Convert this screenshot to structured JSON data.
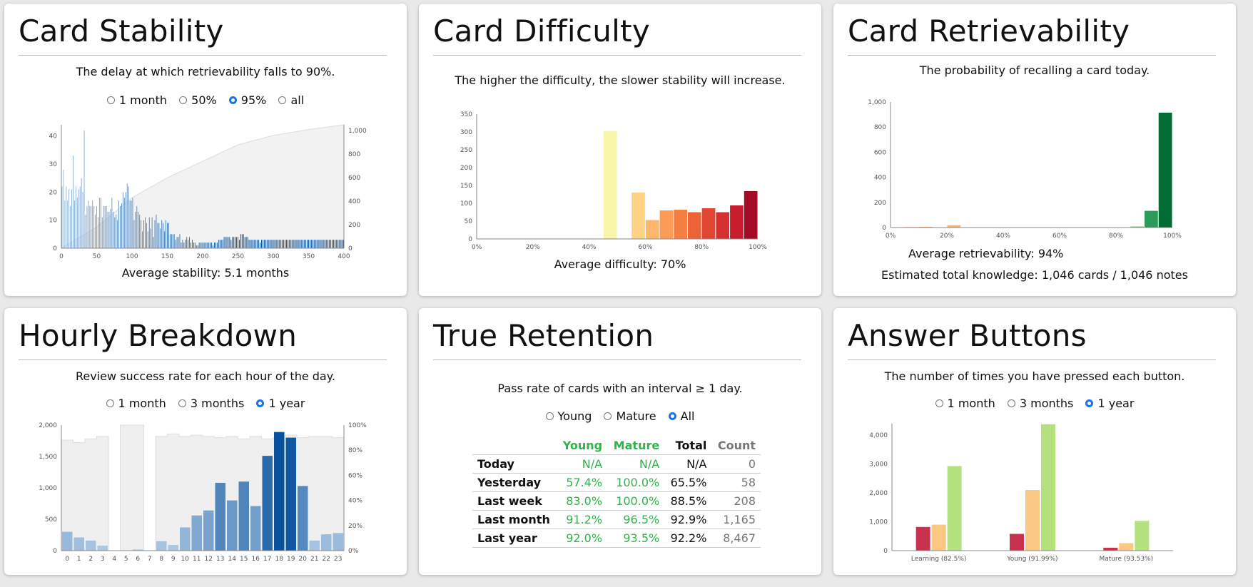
{
  "stability": {
    "title": "Card Stability",
    "subtitle": "The delay at which retrievability falls to 90%.",
    "radios": [
      {
        "label": "1 month",
        "on": false
      },
      {
        "label": "50%",
        "on": false
      },
      {
        "label": "95%",
        "on": true
      },
      {
        "label": "all",
        "on": false
      }
    ],
    "average": "Average stability: 5.1 months"
  },
  "difficulty": {
    "title": "Card Difficulty",
    "subtitle": "The higher the difficulty, the slower stability will increase.",
    "average": "Average difficulty: 70%"
  },
  "retrievability": {
    "title": "Card Retrievability",
    "subtitle": "The probability of recalling a card today.",
    "average": "Average retrievability: 94%",
    "knowledge": "Estimated total knowledge: 1,046 cards / 1,046 notes"
  },
  "hourly": {
    "title": "Hourly Breakdown",
    "subtitle": "Review success rate for each hour of the day.",
    "radios": [
      {
        "label": "1 month",
        "on": false
      },
      {
        "label": "3 months",
        "on": false
      },
      {
        "label": "1 year",
        "on": true
      }
    ]
  },
  "retention": {
    "title": "True Retention",
    "subtitle": "Pass rate of cards with an interval ≥ 1 day.",
    "radios": [
      {
        "label": "Young",
        "on": false
      },
      {
        "label": "Mature",
        "on": false
      },
      {
        "label": "All",
        "on": true
      }
    ],
    "headers": [
      "",
      "Young",
      "Mature",
      "Total",
      "Count"
    ],
    "rows": [
      [
        "Today",
        "N/A",
        "N/A",
        "N/A",
        "0"
      ],
      [
        "Yesterday",
        "57.4%",
        "100.0%",
        "65.5%",
        "58"
      ],
      [
        "Last week",
        "83.0%",
        "100.0%",
        "88.5%",
        "208"
      ],
      [
        "Last month",
        "91.2%",
        "96.5%",
        "92.9%",
        "1,165"
      ],
      [
        "Last year",
        "92.0%",
        "93.5%",
        "92.2%",
        "8,467"
      ]
    ]
  },
  "buttons": {
    "title": "Answer Buttons",
    "subtitle": "The number of times you have pressed each button.",
    "radios": [
      {
        "label": "1 month",
        "on": false
      },
      {
        "label": "3 months",
        "on": false
      },
      {
        "label": "1 year",
        "on": true
      }
    ]
  },
  "chart_data": [
    {
      "id": "stability",
      "type": "bar",
      "x_ticks": [
        "0",
        "50",
        "100",
        "150",
        "200",
        "250",
        "300",
        "350",
        "400"
      ],
      "y_ticks": [
        "0",
        "10",
        "20",
        "30",
        "40"
      ],
      "y2_ticks": [
        "0",
        "200",
        "400",
        "600",
        "800",
        "1,000"
      ],
      "xlim": [
        0,
        400
      ],
      "ylim": [
        0,
        44
      ],
      "y2lim": [
        0,
        1050
      ],
      "values": [
        22,
        28,
        17,
        22,
        17,
        21,
        15,
        21,
        33,
        17,
        22,
        18,
        21,
        22,
        25,
        20,
        42,
        12,
        15,
        17,
        15,
        15,
        17,
        15,
        12,
        15,
        11,
        18,
        18,
        11,
        15,
        15,
        15,
        13,
        13,
        14,
        18,
        13,
        11,
        12,
        10,
        17,
        15,
        16,
        20,
        18,
        20,
        23,
        22,
        17,
        17,
        18,
        10,
        13,
        15,
        13,
        12,
        10,
        6,
        10,
        11,
        9,
        6,
        11,
        7,
        11,
        4,
        10,
        12,
        9,
        9,
        7,
        10,
        9,
        6,
        10,
        9,
        9,
        5,
        5,
        5,
        5,
        3,
        4,
        4,
        5,
        2,
        3,
        2,
        3,
        4,
        3,
        4,
        2,
        3,
        2,
        2,
        1,
        1,
        2,
        2,
        2,
        2,
        2,
        2,
        2,
        2,
        2,
        2,
        1,
        2,
        2,
        2,
        3,
        3,
        3,
        3,
        4,
        4,
        4,
        4,
        4,
        3,
        4,
        4,
        4,
        4,
        4,
        3,
        5,
        5,
        5,
        4,
        4,
        4,
        3,
        3,
        3,
        3,
        3,
        3,
        3,
        3,
        2,
        3,
        3,
        3,
        3,
        3,
        3,
        3,
        3,
        3,
        3,
        3,
        3,
        3,
        3,
        3,
        3,
        3,
        3,
        3,
        3,
        3,
        3,
        3,
        3,
        3,
        3,
        3,
        3,
        3,
        3,
        3,
        3,
        3,
        3,
        3,
        3,
        3,
        3,
        3,
        3,
        3,
        3,
        3,
        3,
        3,
        3,
        3,
        3,
        3,
        3,
        3,
        3,
        3,
        3,
        3,
        3,
        3,
        3,
        3,
        3
      ],
      "cumulative": [
        [
          0,
          0
        ],
        [
          50,
          180
        ],
        [
          100,
          430
        ],
        [
          150,
          600
        ],
        [
          200,
          740
        ],
        [
          250,
          880
        ],
        [
          300,
          960
        ],
        [
          350,
          1010
        ],
        [
          400,
          1050
        ]
      ]
    },
    {
      "id": "difficulty",
      "type": "bar",
      "x_ticks": [
        "0%",
        "20%",
        "40%",
        "60%",
        "80%",
        "100%"
      ],
      "y_ticks": [
        "0",
        "50",
        "100",
        "150",
        "200",
        "250",
        "300",
        "350"
      ],
      "ylim": [
        0,
        350
      ],
      "bins": [
        [
          45,
          50,
          303,
          "#f9f5a9"
        ],
        [
          55,
          60,
          130,
          "#fdd283"
        ],
        [
          60,
          65,
          53,
          "#fdb76c"
        ],
        [
          65,
          70,
          80,
          "#fb9b55"
        ],
        [
          70,
          75,
          82,
          "#f57e43"
        ],
        [
          75,
          80,
          75,
          "#ec6337"
        ],
        [
          80,
          85,
          86,
          "#e04732"
        ],
        [
          85,
          90,
          75,
          "#d63030"
        ],
        [
          90,
          95,
          94,
          "#c81b2c"
        ],
        [
          95,
          100,
          134,
          "#a50b26"
        ]
      ]
    },
    {
      "id": "retrievability",
      "type": "bar",
      "x_ticks": [
        "0%",
        "20%",
        "40%",
        "60%",
        "80%",
        "100%"
      ],
      "y_ticks": [
        "0",
        "200",
        "400",
        "600",
        "800",
        "1,000"
      ],
      "ylim": [
        0,
        1000
      ],
      "bins": [
        [
          5,
          10,
          4,
          "#f08a5d"
        ],
        [
          10,
          15,
          6,
          "#f3a06a"
        ],
        [
          20,
          25,
          18,
          "#f6b478"
        ],
        [
          80,
          85,
          3,
          "#9fd08c"
        ],
        [
          85,
          90,
          8,
          "#6cbf72"
        ],
        [
          90,
          95,
          133,
          "#2c9b58"
        ],
        [
          95,
          100,
          915,
          "#016b34"
        ]
      ]
    },
    {
      "id": "hourly",
      "type": "bar",
      "categories": [
        "0",
        "1",
        "2",
        "3",
        "4",
        "5",
        "6",
        "7",
        "8",
        "9",
        "10",
        "11",
        "12",
        "13",
        "14",
        "15",
        "16",
        "17",
        "18",
        "19",
        "20",
        "21",
        "22",
        "23"
      ],
      "y_ticks": [
        "0",
        "500",
        "1,000",
        "1,500",
        "2,000"
      ],
      "y2_ticks": [
        "0%",
        "20%",
        "40%",
        "60%",
        "80%",
        "100%"
      ],
      "ylim": [
        0,
        2000
      ],
      "values": [
        300,
        210,
        160,
        80,
        0,
        0,
        20,
        0,
        150,
        90,
        370,
        560,
        640,
        1080,
        800,
        1100,
        710,
        1510,
        1890,
        1800,
        1030,
        160,
        260,
        280
      ],
      "success_rate": [
        88,
        86,
        89,
        91,
        null,
        100,
        100,
        null,
        91,
        93,
        91,
        92,
        91,
        90,
        91,
        89,
        91,
        89,
        90,
        92,
        90,
        91,
        91,
        90
      ]
    },
    {
      "id": "buttons",
      "type": "bar",
      "categories": [
        "Learning (82.5%)",
        "Young (91.99%)",
        "Mature (93.53%)"
      ],
      "y_ticks": [
        "0",
        "1,000",
        "2,000",
        "3,000",
        "4,000"
      ],
      "ylim": [
        0,
        4400
      ],
      "series": [
        {
          "values": [
            820,
            580,
            100
          ],
          "color": "#c8324f"
        },
        {
          "values": [
            900,
            2100,
            260
          ],
          "color": "#fbc883"
        },
        {
          "values": [
            2930,
            4380,
            1030
          ],
          "color": "#b4e17e"
        }
      ]
    }
  ]
}
